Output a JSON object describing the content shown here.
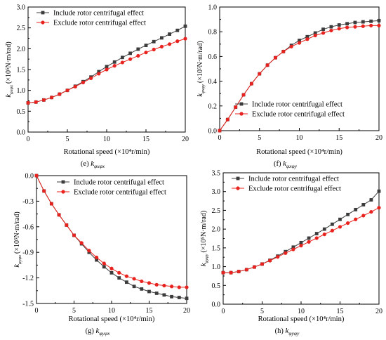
{
  "figure": {
    "legend_include": "Include rotor centrifugal effect",
    "legend_exclude": "Exclude rotor centrifugal effect",
    "colors": {
      "include": "#3c3c3c",
      "exclude": "#e8231f",
      "axis": "#000000"
    }
  },
  "chart_data": [
    {
      "id": "e",
      "type": "line",
      "caption_letter": "(e)",
      "caption_symbol": "k",
      "caption_subscript": "φxφx",
      "ylabel_symbol": "k",
      "ylabel_subscript": "φxφx",
      "ylabel_unit": "(×10⁵N·m/rad)",
      "xlabel": "Rotational speed (×10⁴r/min)",
      "xlim": [
        0,
        20
      ],
      "ylim": [
        0.0,
        3.0
      ],
      "xticks": [
        0,
        5,
        10,
        15,
        20
      ],
      "yticks": [
        0.0,
        0.5,
        1.0,
        1.5,
        2.0,
        2.5,
        3.0
      ],
      "ytick_labels": [
        "0.0",
        "0.5",
        "1.0",
        "1.5",
        "2.0",
        "2.5",
        "3.0"
      ],
      "legend_position": "top-left",
      "x": [
        0,
        1,
        2,
        3,
        4,
        5,
        6,
        7,
        8,
        9,
        10,
        11,
        12,
        13,
        14,
        15,
        16,
        17,
        18,
        19,
        20
      ],
      "series": [
        {
          "name": "Include rotor centrifugal effect",
          "marker": "square",
          "values": [
            0.7,
            0.72,
            0.77,
            0.83,
            0.91,
            1.0,
            1.1,
            1.21,
            1.32,
            1.45,
            1.57,
            1.68,
            1.79,
            1.89,
            1.99,
            2.08,
            2.17,
            2.26,
            2.35,
            2.44,
            2.54
          ]
        },
        {
          "name": "Exclude rotor centrifugal effect",
          "marker": "circle",
          "values": [
            0.7,
            0.72,
            0.77,
            0.83,
            0.91,
            1.0,
            1.09,
            1.19,
            1.29,
            1.4,
            1.5,
            1.59,
            1.67,
            1.75,
            1.83,
            1.91,
            1.98,
            2.05,
            2.11,
            2.18,
            2.24
          ]
        }
      ]
    },
    {
      "id": "f",
      "type": "line",
      "caption_letter": "(f)",
      "caption_symbol": "k",
      "caption_subscript": "φxφy",
      "ylabel_symbol": "k",
      "ylabel_subscript": "φxφy",
      "ylabel_unit": "(×10⁵N·m/rad)",
      "xlabel": "Rotational speed (×10⁴r/min)",
      "xlim": [
        0,
        20
      ],
      "ylim": [
        0.0,
        1.0
      ],
      "xticks": [
        0,
        5,
        10,
        15,
        20
      ],
      "yticks": [
        0.0,
        0.2,
        0.4,
        0.6,
        0.8,
        1.0
      ],
      "ytick_labels": [
        "0.0",
        "0.2",
        "0.4",
        "0.6",
        "0.8",
        "1.0"
      ],
      "legend_position": "bottom-right",
      "x": [
        0,
        1,
        2,
        3,
        4,
        5,
        6,
        7,
        8,
        9,
        10,
        11,
        12,
        13,
        14,
        15,
        16,
        17,
        18,
        19,
        20
      ],
      "series": [
        {
          "name": "Include rotor centrifugal effect",
          "marker": "square",
          "values": [
            0.0,
            0.09,
            0.19,
            0.29,
            0.38,
            0.46,
            0.53,
            0.59,
            0.64,
            0.69,
            0.73,
            0.76,
            0.79,
            0.82,
            0.84,
            0.855,
            0.865,
            0.875,
            0.88,
            0.885,
            0.89
          ]
        },
        {
          "name": "Exclude rotor centrifugal effect",
          "marker": "circle",
          "values": [
            0.0,
            0.09,
            0.19,
            0.29,
            0.38,
            0.46,
            0.53,
            0.59,
            0.64,
            0.68,
            0.71,
            0.74,
            0.77,
            0.79,
            0.81,
            0.825,
            0.835,
            0.84,
            0.845,
            0.85,
            0.85
          ]
        }
      ]
    },
    {
      "id": "g",
      "type": "line",
      "caption_letter": "(g)",
      "caption_symbol": "k",
      "caption_subscript": "φyφx",
      "ylabel_symbol": "k",
      "ylabel_subscript": "φyφx",
      "ylabel_unit": "(×10⁵N·m/rad)",
      "xlabel": "Rotational speed (×10⁴r/min)",
      "xlim": [
        0,
        20
      ],
      "ylim": [
        -1.5,
        0.0
      ],
      "xticks": [
        0,
        5,
        10,
        15,
        20
      ],
      "yticks": [
        0.0,
        -0.3,
        -0.6,
        -0.9,
        -1.2,
        -1.5
      ],
      "ytick_labels": [
        "0.0",
        "-0.3",
        "-0.6",
        "-0.9",
        "-1.2",
        "-1.5"
      ],
      "legend_position": "top-right",
      "x": [
        0,
        1,
        2,
        3,
        4,
        5,
        6,
        7,
        8,
        9,
        10,
        11,
        12,
        13,
        14,
        15,
        16,
        17,
        18,
        19,
        20
      ],
      "series": [
        {
          "name": "Include rotor centrifugal effect",
          "marker": "square",
          "values": [
            0.0,
            -0.18,
            -0.33,
            -0.46,
            -0.58,
            -0.7,
            -0.8,
            -0.9,
            -0.99,
            -1.07,
            -1.14,
            -1.2,
            -1.25,
            -1.3,
            -1.33,
            -1.36,
            -1.38,
            -1.4,
            -1.42,
            -1.43,
            -1.44
          ]
        },
        {
          "name": "Exclude rotor centrifugal effect",
          "marker": "circle",
          "values": [
            0.0,
            -0.18,
            -0.33,
            -0.46,
            -0.58,
            -0.7,
            -0.79,
            -0.88,
            -0.96,
            -1.03,
            -1.09,
            -1.14,
            -1.18,
            -1.21,
            -1.24,
            -1.26,
            -1.28,
            -1.29,
            -1.3,
            -1.31,
            -1.31
          ]
        }
      ]
    },
    {
      "id": "h",
      "type": "line",
      "caption_letter": "(h)",
      "caption_symbol": "k",
      "caption_subscript": "φyφy",
      "ylabel_symbol": "k",
      "ylabel_subscript": "φyφy",
      "ylabel_unit": "(×10⁵N·m/rad)",
      "xlabel": "Rotational speed (×10⁴r/min)",
      "xlim": [
        0,
        20
      ],
      "ylim": [
        0.0,
        3.5
      ],
      "xticks": [
        0,
        5,
        10,
        15,
        20
      ],
      "yticks": [
        0.0,
        0.5,
        1.0,
        1.5,
        2.0,
        2.5,
        3.0,
        3.5
      ],
      "ytick_labels": [
        "0.0",
        "0.5",
        "1.0",
        "1.5",
        "2.0",
        "2.5",
        "3.0",
        "3.5"
      ],
      "legend_position": "top-left",
      "x": [
        0,
        1,
        2,
        3,
        4,
        5,
        6,
        7,
        8,
        9,
        10,
        11,
        12,
        13,
        14,
        15,
        16,
        17,
        18,
        19,
        20
      ],
      "series": [
        {
          "name": "Include rotor centrifugal effect",
          "marker": "square",
          "values": [
            0.84,
            0.84,
            0.87,
            0.92,
            0.99,
            1.07,
            1.17,
            1.28,
            1.4,
            1.52,
            1.64,
            1.76,
            1.88,
            2.0,
            2.13,
            2.26,
            2.39,
            2.52,
            2.65,
            2.78,
            3.01
          ]
        },
        {
          "name": "Exclude rotor centrifugal effect",
          "marker": "circle",
          "values": [
            0.84,
            0.84,
            0.87,
            0.92,
            0.99,
            1.07,
            1.16,
            1.26,
            1.36,
            1.46,
            1.56,
            1.66,
            1.76,
            1.86,
            1.96,
            2.06,
            2.16,
            2.26,
            2.36,
            2.46,
            2.57
          ]
        }
      ]
    }
  ]
}
